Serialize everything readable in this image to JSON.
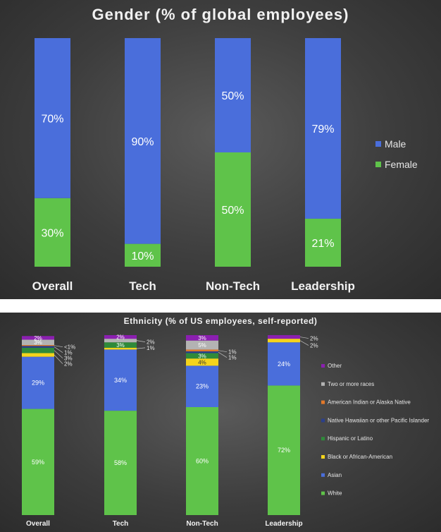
{
  "chart_data": [
    {
      "type": "bar",
      "stacked": true,
      "title": "Gender (% of global employees)",
      "categories": [
        "Overall",
        "Tech",
        "Non-Tech",
        "Leadership"
      ],
      "series": [
        {
          "name": "Female",
          "color": "#5fc34a",
          "values": [
            30,
            10,
            50,
            21
          ],
          "labels": [
            "30%",
            "10%",
            "50%",
            "21%"
          ]
        },
        {
          "name": "Male",
          "color": "#4a6edb",
          "values": [
            70,
            90,
            50,
            79
          ],
          "labels": [
            "70%",
            "90%",
            "50%",
            "79%"
          ]
        }
      ],
      "legend_order": [
        "Male",
        "Female"
      ],
      "legend_position": "right",
      "ylim": [
        0,
        100
      ]
    },
    {
      "type": "bar",
      "stacked": true,
      "title": "Ethnicity (% of US employees, self-reported)",
      "categories": [
        "Overall",
        "Tech",
        "Non-Tech",
        "Leadership"
      ],
      "series": [
        {
          "name": "White",
          "color": "#5fc34a",
          "values": [
            59,
            58,
            60,
            72
          ],
          "labels": [
            "59%",
            "58%",
            "60%",
            "72%"
          ]
        },
        {
          "name": "Asian",
          "color": "#4a6edb",
          "values": [
            29,
            34,
            23,
            24
          ],
          "labels": [
            "29%",
            "34%",
            "23%",
            "24%"
          ]
        },
        {
          "name": "Black or African-American",
          "color": "#f4d41c",
          "values": [
            2,
            1,
            4,
            2
          ],
          "labels": [
            "2%",
            "1%",
            "4%",
            "2%"
          ]
        },
        {
          "name": "Hispanic or Latino",
          "color": "#2f8a3a",
          "values": [
            3,
            3,
            3,
            0
          ],
          "labels": [
            "3%",
            "3%",
            "3%",
            ""
          ]
        },
        {
          "name": "Native Hawaiian or other Pacific Islander",
          "color": "#2b3f8a",
          "values": [
            1,
            0,
            1,
            0
          ],
          "labels": [
            "1%",
            "",
            "1%",
            ""
          ]
        },
        {
          "name": "American Indian or Alaska Native",
          "color": "#e2792b",
          "values": [
            0.5,
            0,
            1,
            0
          ],
          "labels": [
            "<1%",
            "",
            "1%",
            ""
          ]
        },
        {
          "name": "Two or more races",
          "color": "#b3b3b3",
          "values": [
            3,
            2,
            5,
            0
          ],
          "labels": [
            "3%",
            "2%",
            "5%",
            ""
          ]
        },
        {
          "name": "Other",
          "color": "#8b1fb0",
          "values": [
            2,
            2,
            3,
            2
          ],
          "labels": [
            "2%",
            "2%",
            "3%",
            "2%"
          ]
        }
      ],
      "legend_order": [
        "Other",
        "Two or more races",
        "American Indian or Alaska Native",
        "Native Hawaiian or other Pacific Islander",
        "Hispanic or Latino",
        "Black or African-American",
        "Asian",
        "White"
      ],
      "legend_position": "right",
      "ylim": [
        0,
        100
      ]
    }
  ]
}
